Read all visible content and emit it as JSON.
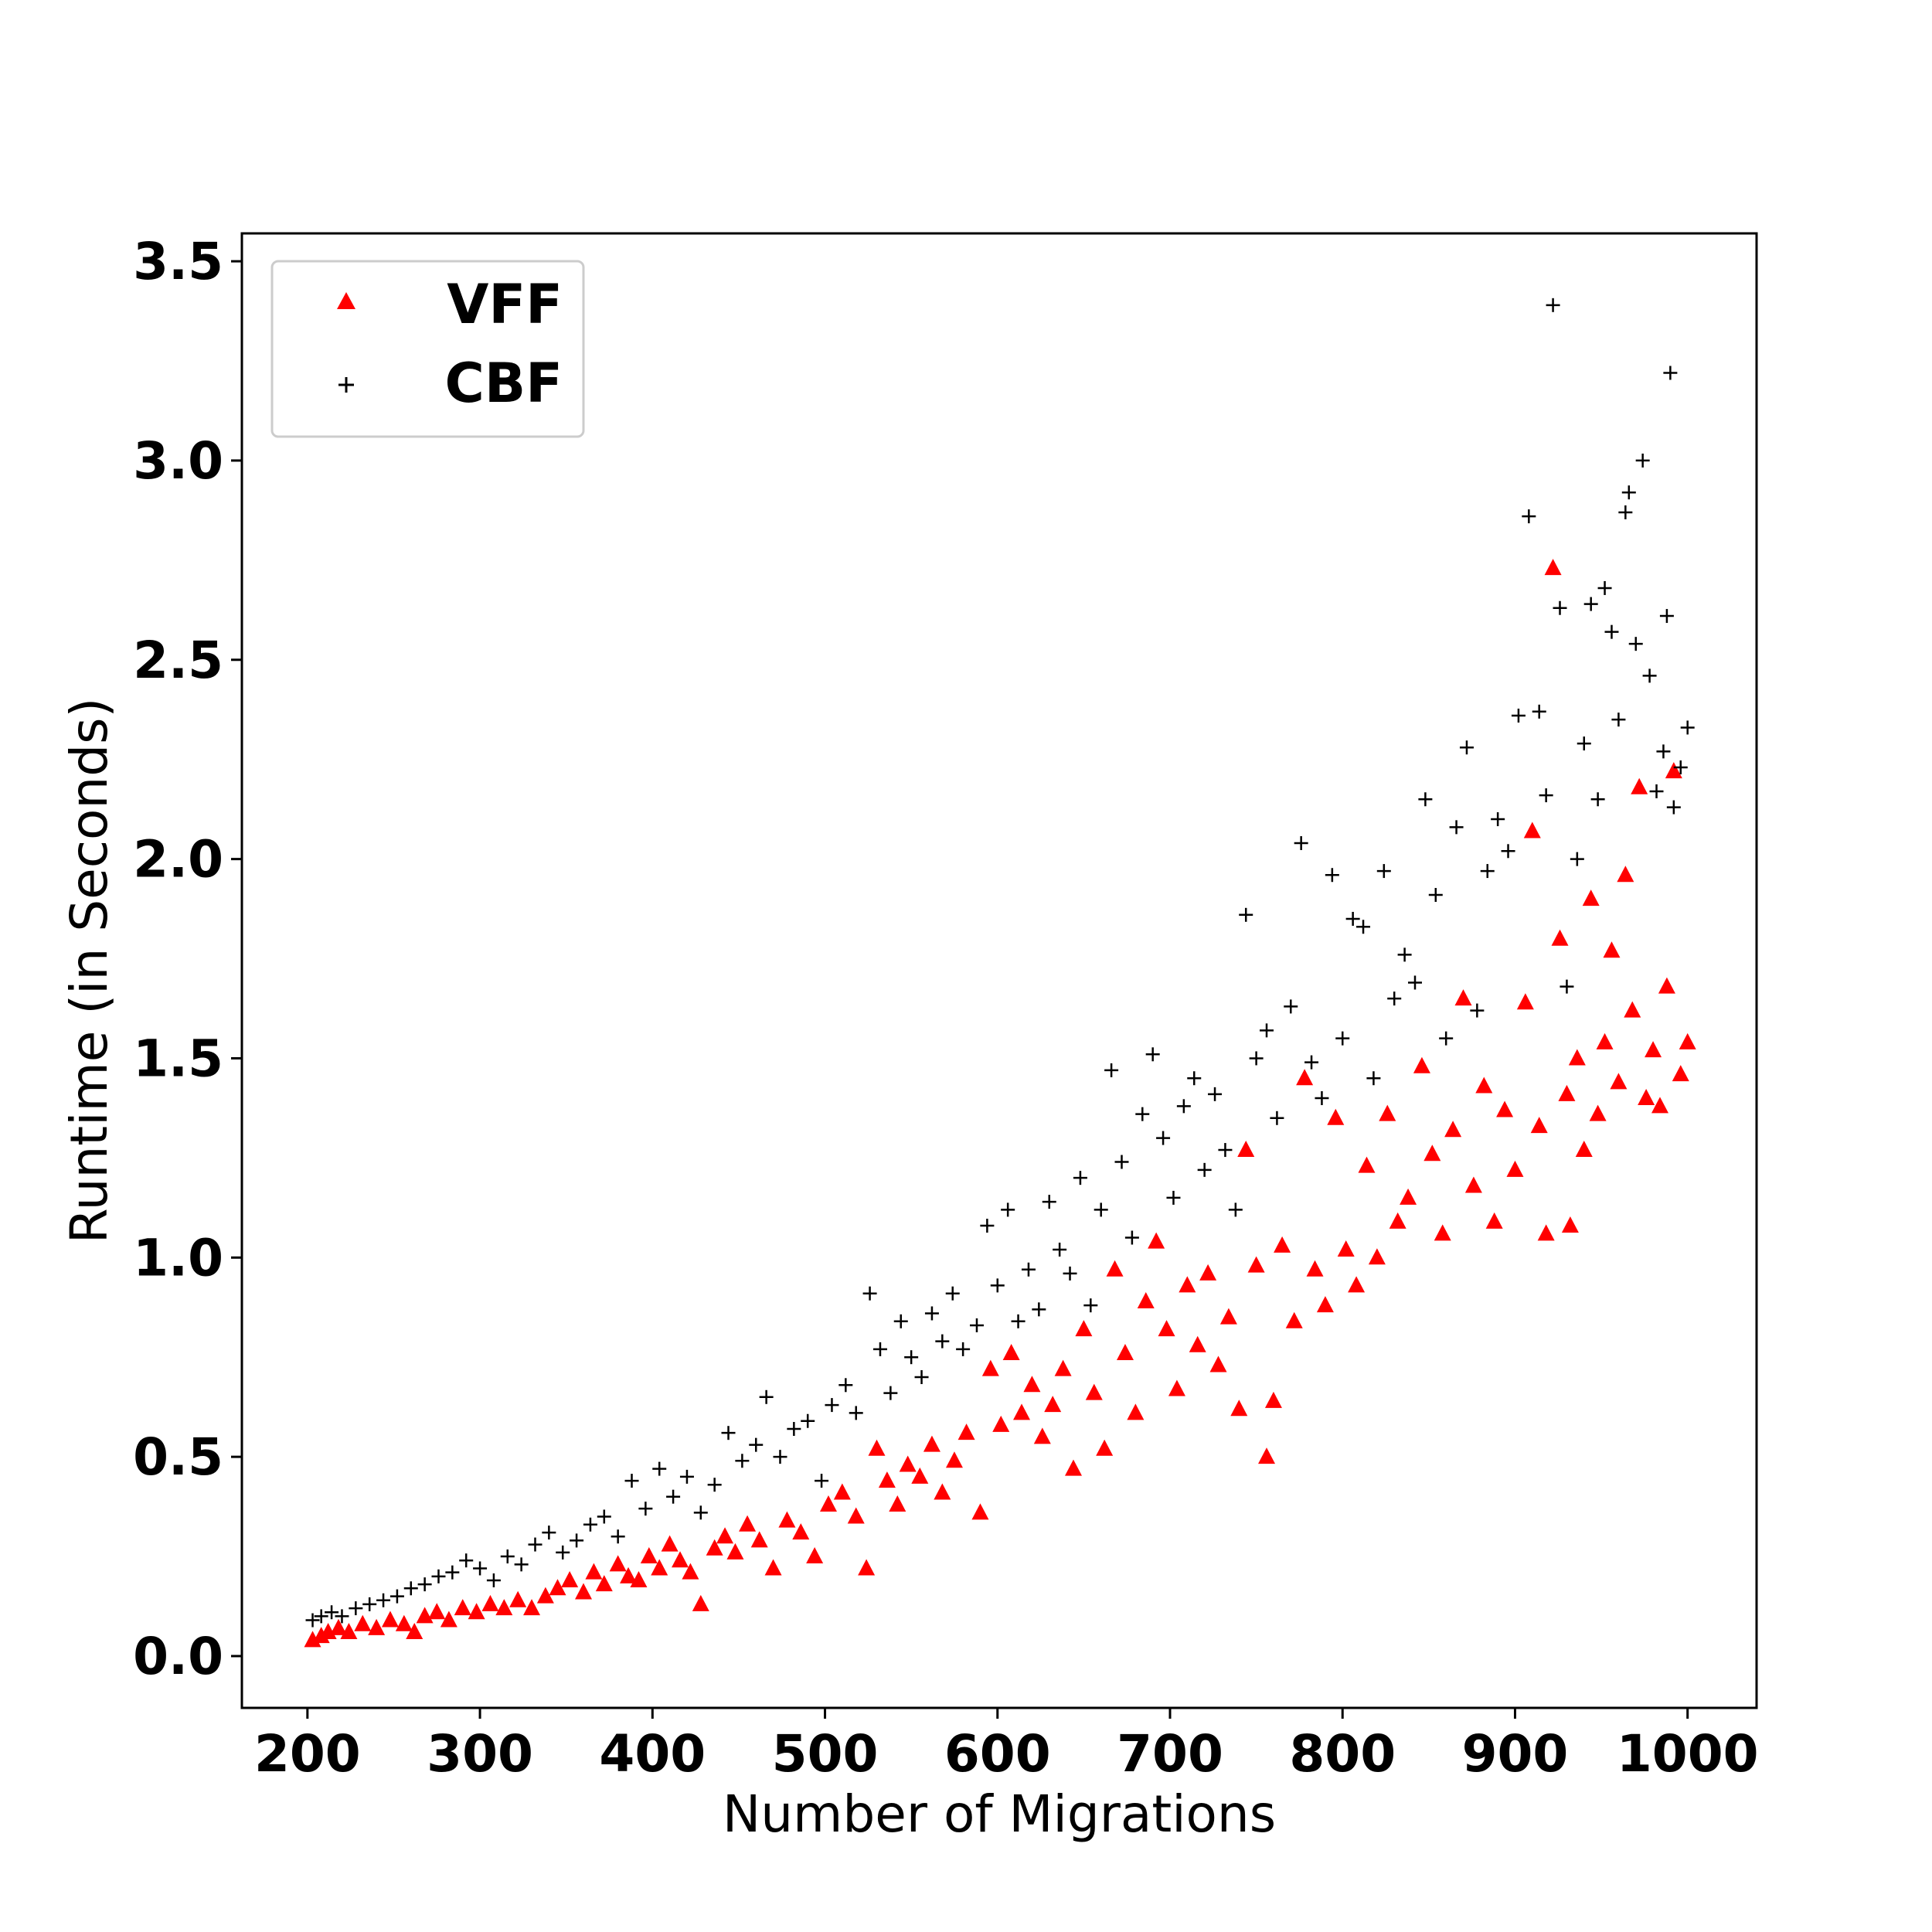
{
  "chart_data": {
    "type": "scatter",
    "title": "",
    "xlabel": "Number of Migrations",
    "ylabel": "Runtime (in Seconds)",
    "xlim": [
      162,
      1040
    ],
    "ylim": [
      -0.13,
      3.57
    ],
    "x_ticks": [
      "200",
      "300",
      "400",
      "500",
      "600",
      "700",
      "800",
      "900",
      "1000"
    ],
    "y_ticks": [
      "0.0",
      "0.5",
      "1.0",
      "1.5",
      "2.0",
      "2.5",
      "3.0",
      "3.5"
    ],
    "grid": false,
    "legend_position": "upper-left",
    "series": [
      {
        "name": "VFF",
        "marker": "triangle",
        "color": "#ff0000",
        "points": [
          [
            203,
            0.04
          ],
          [
            208,
            0.05
          ],
          [
            212,
            0.06
          ],
          [
            218,
            0.07
          ],
          [
            224,
            0.06
          ],
          [
            232,
            0.08
          ],
          [
            240,
            0.07
          ],
          [
            248,
            0.09
          ],
          [
            256,
            0.08
          ],
          [
            262,
            0.06
          ],
          [
            268,
            0.1
          ],
          [
            275,
            0.11
          ],
          [
            282,
            0.09
          ],
          [
            290,
            0.12
          ],
          [
            298,
            0.11
          ],
          [
            306,
            0.13
          ],
          [
            314,
            0.12
          ],
          [
            322,
            0.14
          ],
          [
            330,
            0.12
          ],
          [
            338,
            0.15
          ],
          [
            345,
            0.17
          ],
          [
            352,
            0.19
          ],
          [
            360,
            0.16
          ],
          [
            366,
            0.21
          ],
          [
            372,
            0.18
          ],
          [
            380,
            0.23
          ],
          [
            386,
            0.2
          ],
          [
            392,
            0.19
          ],
          [
            398,
            0.25
          ],
          [
            404,
            0.22
          ],
          [
            410,
            0.28
          ],
          [
            416,
            0.24
          ],
          [
            422,
            0.21
          ],
          [
            428,
            0.13
          ],
          [
            436,
            0.27
          ],
          [
            442,
            0.3
          ],
          [
            448,
            0.26
          ],
          [
            455,
            0.33
          ],
          [
            462,
            0.29
          ],
          [
            470,
            0.22
          ],
          [
            478,
            0.34
          ],
          [
            486,
            0.31
          ],
          [
            494,
            0.25
          ],
          [
            502,
            0.38
          ],
          [
            510,
            0.41
          ],
          [
            518,
            0.35
          ],
          [
            524,
            0.22
          ],
          [
            530,
            0.52
          ],
          [
            536,
            0.44
          ],
          [
            542,
            0.38
          ],
          [
            548,
            0.48
          ],
          [
            555,
            0.45
          ],
          [
            562,
            0.53
          ],
          [
            568,
            0.41
          ],
          [
            575,
            0.49
          ],
          [
            582,
            0.56
          ],
          [
            590,
            0.36
          ],
          [
            596,
            0.72
          ],
          [
            602,
            0.58
          ],
          [
            608,
            0.76
          ],
          [
            614,
            0.61
          ],
          [
            620,
            0.68
          ],
          [
            626,
            0.55
          ],
          [
            632,
            0.63
          ],
          [
            638,
            0.72
          ],
          [
            644,
            0.47
          ],
          [
            650,
            0.82
          ],
          [
            656,
            0.66
          ],
          [
            662,
            0.52
          ],
          [
            668,
            0.97
          ],
          [
            674,
            0.76
          ],
          [
            680,
            0.61
          ],
          [
            686,
            0.89
          ],
          [
            692,
            1.04
          ],
          [
            698,
            0.82
          ],
          [
            704,
            0.67
          ],
          [
            710,
            0.93
          ],
          [
            716,
            0.78
          ],
          [
            722,
            0.96
          ],
          [
            728,
            0.73
          ],
          [
            734,
            0.85
          ],
          [
            740,
            0.62
          ],
          [
            744,
            1.27
          ],
          [
            750,
            0.98
          ],
          [
            756,
            0.5
          ],
          [
            760,
            0.64
          ],
          [
            765,
            1.03
          ],
          [
            772,
            0.84
          ],
          [
            778,
            1.45
          ],
          [
            784,
            0.97
          ],
          [
            790,
            0.88
          ],
          [
            796,
            1.35
          ],
          [
            802,
            1.02
          ],
          [
            808,
            0.93
          ],
          [
            814,
            1.23
          ],
          [
            820,
            1.0
          ],
          [
            826,
            1.36
          ],
          [
            832,
            1.09
          ],
          [
            838,
            1.15
          ],
          [
            846,
            1.48
          ],
          [
            852,
            1.26
          ],
          [
            858,
            1.06
          ],
          [
            864,
            1.32
          ],
          [
            870,
            1.65
          ],
          [
            876,
            1.18
          ],
          [
            882,
            1.43
          ],
          [
            888,
            1.09
          ],
          [
            894,
            1.37
          ],
          [
            900,
            1.22
          ],
          [
            906,
            1.64
          ],
          [
            910,
            2.07
          ],
          [
            914,
            1.33
          ],
          [
            918,
            1.06
          ],
          [
            922,
            2.73
          ],
          [
            926,
            1.8
          ],
          [
            930,
            1.41
          ],
          [
            932,
            1.08
          ],
          [
            936,
            1.5
          ],
          [
            940,
            1.27
          ],
          [
            944,
            1.9
          ],
          [
            948,
            1.36
          ],
          [
            952,
            1.54
          ],
          [
            956,
            1.77
          ],
          [
            960,
            1.44
          ],
          [
            964,
            1.96
          ],
          [
            968,
            1.62
          ],
          [
            972,
            2.18
          ],
          [
            976,
            1.4
          ],
          [
            980,
            1.52
          ],
          [
            984,
            1.38
          ],
          [
            988,
            1.68
          ],
          [
            992,
            2.22
          ],
          [
            996,
            1.46
          ],
          [
            1000,
            1.54
          ]
        ]
      },
      {
        "name": "CBF",
        "marker": "plus",
        "color": "#000000",
        "points": [
          [
            203,
            0.09
          ],
          [
            208,
            0.1
          ],
          [
            214,
            0.11
          ],
          [
            220,
            0.1
          ],
          [
            228,
            0.12
          ],
          [
            236,
            0.13
          ],
          [
            244,
            0.14
          ],
          [
            252,
            0.15
          ],
          [
            260,
            0.17
          ],
          [
            268,
            0.18
          ],
          [
            276,
            0.2
          ],
          [
            284,
            0.21
          ],
          [
            292,
            0.24
          ],
          [
            300,
            0.22
          ],
          [
            308,
            0.19
          ],
          [
            316,
            0.25
          ],
          [
            324,
            0.23
          ],
          [
            332,
            0.28
          ],
          [
            340,
            0.31
          ],
          [
            348,
            0.26
          ],
          [
            356,
            0.29
          ],
          [
            364,
            0.33
          ],
          [
            372,
            0.35
          ],
          [
            380,
            0.3
          ],
          [
            388,
            0.44
          ],
          [
            396,
            0.37
          ],
          [
            404,
            0.47
          ],
          [
            412,
            0.4
          ],
          [
            420,
            0.45
          ],
          [
            428,
            0.36
          ],
          [
            436,
            0.43
          ],
          [
            444,
            0.56
          ],
          [
            452,
            0.49
          ],
          [
            460,
            0.53
          ],
          [
            466,
            0.65
          ],
          [
            474,
            0.5
          ],
          [
            482,
            0.57
          ],
          [
            490,
            0.59
          ],
          [
            498,
            0.44
          ],
          [
            504,
            0.63
          ],
          [
            512,
            0.68
          ],
          [
            518,
            0.61
          ],
          [
            526,
            0.91
          ],
          [
            532,
            0.77
          ],
          [
            538,
            0.66
          ],
          [
            544,
            0.84
          ],
          [
            550,
            0.75
          ],
          [
            556,
            0.7
          ],
          [
            562,
            0.86
          ],
          [
            568,
            0.79
          ],
          [
            574,
            0.91
          ],
          [
            580,
            0.77
          ],
          [
            588,
            0.83
          ],
          [
            594,
            1.08
          ],
          [
            600,
            0.93
          ],
          [
            606,
            1.12
          ],
          [
            612,
            0.84
          ],
          [
            618,
            0.97
          ],
          [
            624,
            0.87
          ],
          [
            630,
            1.14
          ],
          [
            636,
            1.02
          ],
          [
            642,
            0.96
          ],
          [
            648,
            1.2
          ],
          [
            654,
            0.88
          ],
          [
            660,
            1.12
          ],
          [
            666,
            1.47
          ],
          [
            672,
            1.24
          ],
          [
            678,
            1.05
          ],
          [
            684,
            1.36
          ],
          [
            690,
            1.51
          ],
          [
            696,
            1.3
          ],
          [
            702,
            1.15
          ],
          [
            708,
            1.38
          ],
          [
            714,
            1.45
          ],
          [
            720,
            1.22
          ],
          [
            726,
            1.41
          ],
          [
            732,
            1.27
          ],
          [
            738,
            1.12
          ],
          [
            744,
            1.86
          ],
          [
            750,
            1.5
          ],
          [
            756,
            1.57
          ],
          [
            762,
            1.35
          ],
          [
            770,
            1.63
          ],
          [
            776,
            2.04
          ],
          [
            782,
            1.49
          ],
          [
            788,
            1.4
          ],
          [
            794,
            1.96
          ],
          [
            800,
            1.55
          ],
          [
            806,
            1.85
          ],
          [
            812,
            1.83
          ],
          [
            818,
            1.45
          ],
          [
            824,
            1.97
          ],
          [
            830,
            1.65
          ],
          [
            836,
            1.76
          ],
          [
            842,
            1.69
          ],
          [
            848,
            2.15
          ],
          [
            854,
            1.91
          ],
          [
            860,
            1.55
          ],
          [
            866,
            2.08
          ],
          [
            872,
            2.28
          ],
          [
            878,
            1.62
          ],
          [
            884,
            1.97
          ],
          [
            890,
            2.1
          ],
          [
            896,
            2.02
          ],
          [
            902,
            2.36
          ],
          [
            908,
            2.86
          ],
          [
            914,
            2.37
          ],
          [
            918,
            2.16
          ],
          [
            922,
            3.39
          ],
          [
            926,
            2.63
          ],
          [
            930,
            1.68
          ],
          [
            936,
            2.0
          ],
          [
            940,
            2.29
          ],
          [
            944,
            2.64
          ],
          [
            948,
            2.15
          ],
          [
            952,
            2.68
          ],
          [
            956,
            2.57
          ],
          [
            960,
            2.35
          ],
          [
            964,
            2.87
          ],
          [
            966,
            2.92
          ],
          [
            970,
            2.54
          ],
          [
            974,
            3.0
          ],
          [
            978,
            2.46
          ],
          [
            982,
            2.17
          ],
          [
            986,
            2.27
          ],
          [
            988,
            2.61
          ],
          [
            990,
            3.22
          ],
          [
            992,
            2.13
          ],
          [
            996,
            2.23
          ],
          [
            1000,
            2.33
          ]
        ]
      }
    ]
  }
}
